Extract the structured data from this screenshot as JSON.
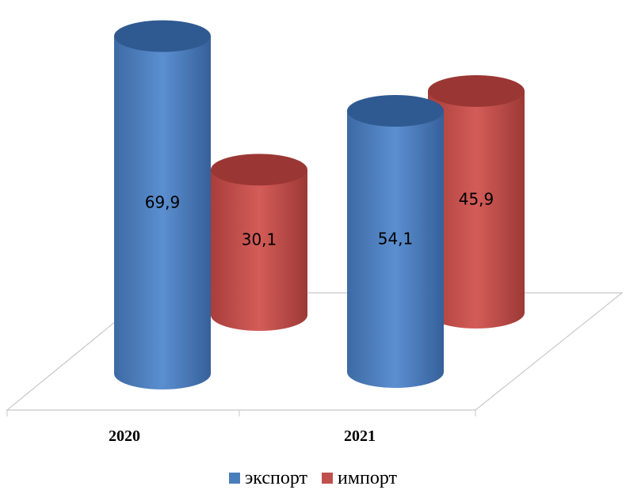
{
  "chart_data": {
    "type": "bar",
    "categories": [
      "2020",
      "2021"
    ],
    "series": [
      {
        "name": "экспорт",
        "color": "#4a7ebb",
        "values": [
          69.9,
          54.1
        ],
        "labels": [
          "69,9",
          "54,1"
        ]
      },
      {
        "name": "импорт",
        "color": "#c0504d",
        "values": [
          30.1,
          45.9
        ],
        "labels": [
          "30,1",
          "45,9"
        ]
      }
    ],
    "title": "",
    "xlabel": "",
    "ylabel": "",
    "ylim": [
      0,
      70
    ],
    "grid": false,
    "legend_position": "bottom",
    "style": "3d-cylinder"
  }
}
